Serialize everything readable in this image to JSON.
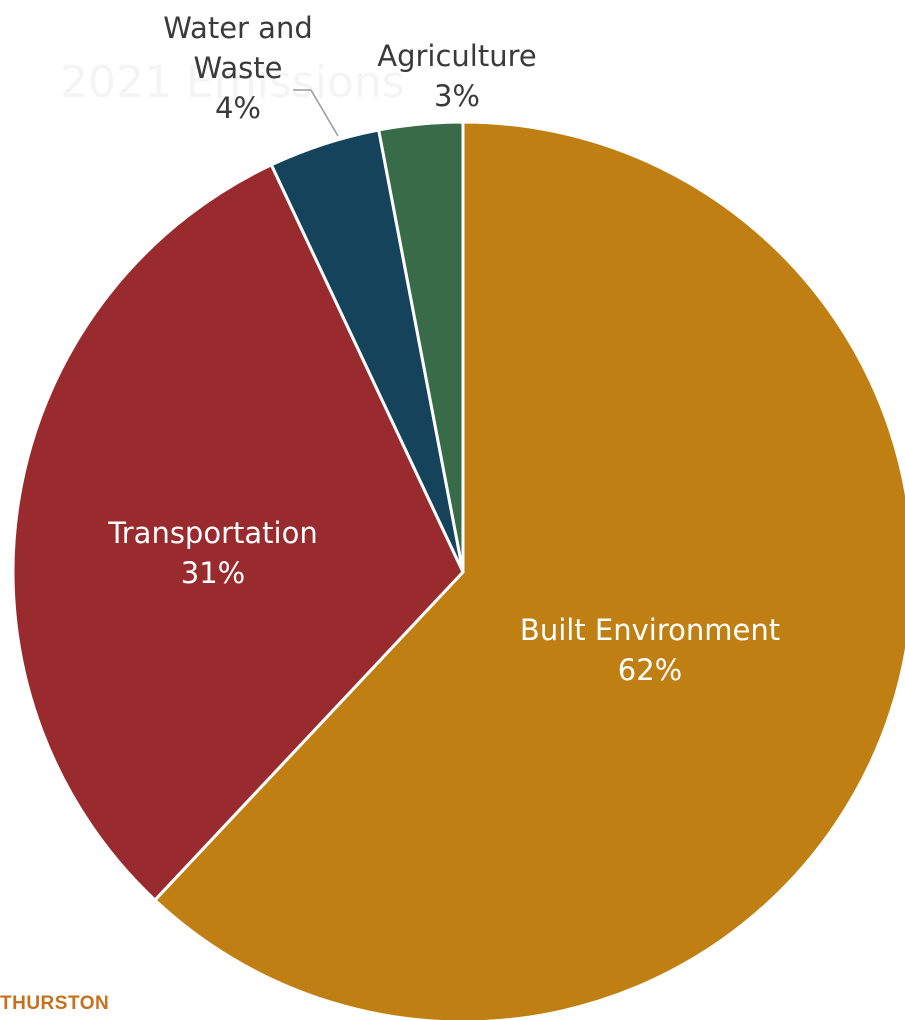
{
  "chart_data": {
    "type": "pie",
    "title": "2021 Emissions",
    "slices": [
      {
        "label": "Built Environment",
        "value": 62,
        "value_label": "62%",
        "color": "#bf7f12"
      },
      {
        "label": "Transportation",
        "value": 31,
        "value_label": "31%",
        "color": "#992b2f"
      },
      {
        "label": "Water and Waste",
        "value": 4,
        "value_label": "4%",
        "color": "#15435b"
      },
      {
        "label": "Agriculture",
        "value": 3,
        "value_label": "3%",
        "color": "#386c48"
      }
    ],
    "start_angle": "12 o'clock",
    "direction": "clockwise",
    "label_colors": {
      "inside": "#ffffff",
      "outside": "#3a3a3a"
    }
  },
  "brand": {
    "text": "THURSTON",
    "color": "#c8701e"
  }
}
